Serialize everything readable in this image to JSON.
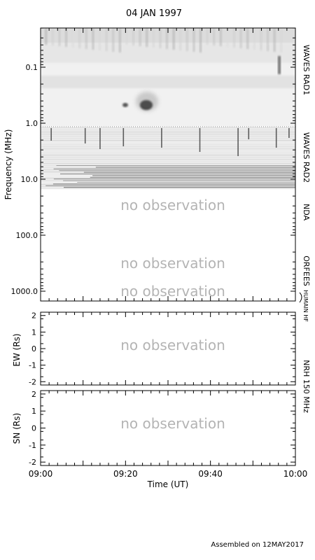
{
  "title": "04 JAN 1997",
  "footer": "Assembled on 12MAY2017",
  "no_observation_text": "no observation",
  "chart_data": [
    {
      "type": "heatmap",
      "name": "dynamic-spectrum",
      "ylabel": "Frequency (MHz)",
      "yscale": "log-reversed",
      "ylim": [
        0.02,
        1500
      ],
      "y_ticks": [
        0.1,
        1.0,
        10.0,
        100.0,
        1000.0
      ],
      "y_tick_labels": [
        "0.1",
        "1.0",
        "10.0",
        "100.0",
        "1000.0"
      ],
      "xlim_minutes": [
        0,
        60
      ],
      "right_labels": [
        "WAVES RAD1",
        "WAVES RAD2",
        "NDA",
        "ORFEES",
        "HUMAIN HF"
      ],
      "bands": [
        {
          "instrument": "WAVES RAD1",
          "range_mhz": [
            0.02,
            1.07
          ],
          "status": "observed"
        },
        {
          "instrument": "WAVES RAD2",
          "range_mhz": [
            1.07,
            13.8
          ],
          "status": "observed"
        },
        {
          "instrument": "NDA",
          "range_mhz": [
            13.8,
            180
          ],
          "status": "no observation"
        },
        {
          "instrument": "ORFEES",
          "range_mhz": [
            180,
            1000
          ],
          "status": "no observation"
        },
        {
          "instrument": "HUMAIN HF",
          "range_mhz": [
            1000,
            1500
          ],
          "status": "no observation"
        }
      ],
      "features": [
        {
          "kind": "burst",
          "time_min": 25,
          "freq_mhz": 0.55,
          "intensity": "strong"
        },
        {
          "kind": "burst",
          "time_min": 20,
          "freq_mhz": 0.5,
          "intensity": "medium"
        },
        {
          "kind": "burst",
          "time_min": 56.5,
          "freq_mhz": 0.11,
          "intensity": "medium"
        }
      ]
    },
    {
      "type": "scatter",
      "name": "NRH EW",
      "ylabel": "EW (Rs)",
      "ylim": [
        -2.2,
        2.2
      ],
      "y_ticks": [
        -2,
        -1,
        0,
        1,
        2
      ],
      "right_label": "NRH 150 MHz",
      "status": "no observation",
      "points": []
    },
    {
      "type": "scatter",
      "name": "NRH SN",
      "ylabel": "SN (Rs)",
      "ylim": [
        -2.2,
        2.2
      ],
      "y_ticks": [
        -2,
        -1,
        0,
        1,
        2
      ],
      "status": "no observation",
      "points": []
    }
  ],
  "x_axis": {
    "xlabel": "Time (UT)",
    "range_minutes": [
      0,
      60
    ],
    "tick_minutes": [
      0,
      20,
      40,
      60
    ],
    "tick_labels": [
      "09:00",
      "09:20",
      "09:40",
      "10:00"
    ]
  }
}
